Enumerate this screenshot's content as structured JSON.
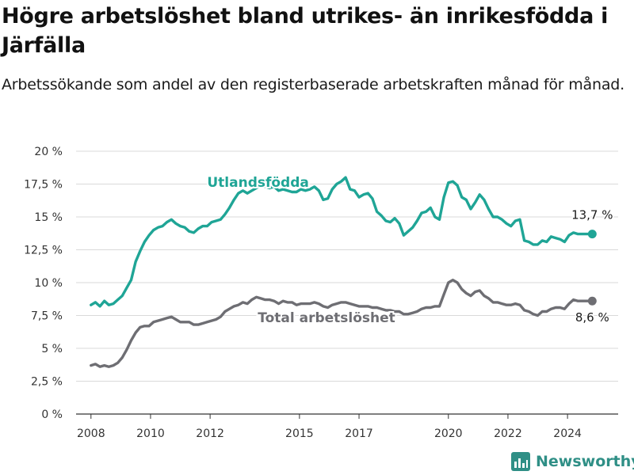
{
  "title": "Högre arbetslöshet bland utrikes- än inrikesfödda i Järfälla",
  "subtitle": "Arbetssökande som andel av den registerbaserade arbetskraften månad för månad.",
  "brand": {
    "name": "Newsworthy",
    "icon": "newsworthy-logo-icon",
    "color": "#2f8f86"
  },
  "chart_data": {
    "type": "line",
    "xlim": [
      2007.5,
      2025.7
    ],
    "ylim": [
      0,
      20
    ],
    "y_ticks": [
      {
        "value": 0,
        "label": "0 %"
      },
      {
        "value": 2.5,
        "label": "2,5 %"
      },
      {
        "value": 5,
        "label": "5 %"
      },
      {
        "value": 7.5,
        "label": "7,5 %"
      },
      {
        "value": 10,
        "label": "10 %"
      },
      {
        "value": 12.5,
        "label": "12,5 %"
      },
      {
        "value": 15,
        "label": "15 %"
      },
      {
        "value": 17.5,
        "label": "17,5 %"
      },
      {
        "value": 20,
        "label": "20 %"
      }
    ],
    "x_ticks": [
      {
        "value": 2008,
        "label": "2008"
      },
      {
        "value": 2010,
        "label": "2010"
      },
      {
        "value": 2012,
        "label": "2012"
      },
      {
        "value": 2015,
        "label": "2015"
      },
      {
        "value": 2017,
        "label": "2017"
      },
      {
        "value": 2020,
        "label": "2020"
      },
      {
        "value": 2022,
        "label": "2022"
      },
      {
        "value": 2024,
        "label": "2024"
      }
    ],
    "grid": "horizontal",
    "series": [
      {
        "name": "Utlandsfödda",
        "color": "#1fa596",
        "end_value_label": "13,7 %",
        "x": [
          2008.0,
          2008.15,
          2008.3,
          2008.45,
          2008.6,
          2008.75,
          2008.9,
          2009.05,
          2009.2,
          2009.35,
          2009.5,
          2009.65,
          2009.8,
          2009.95,
          2010.1,
          2010.25,
          2010.4,
          2010.55,
          2010.7,
          2010.85,
          2011.0,
          2011.15,
          2011.3,
          2011.45,
          2011.6,
          2011.75,
          2011.9,
          2012.05,
          2012.2,
          2012.35,
          2012.5,
          2012.65,
          2012.8,
          2012.95,
          2013.1,
          2013.25,
          2013.4,
          2013.55,
          2013.7,
          2013.85,
          2014.0,
          2014.15,
          2014.3,
          2014.45,
          2014.6,
          2014.75,
          2014.9,
          2015.05,
          2015.2,
          2015.35,
          2015.5,
          2015.65,
          2015.8,
          2015.95,
          2016.1,
          2016.25,
          2016.4,
          2016.55,
          2016.7,
          2016.85,
          2017.0,
          2017.15,
          2017.3,
          2017.45,
          2017.6,
          2017.75,
          2017.9,
          2018.05,
          2018.2,
          2018.35,
          2018.5,
          2018.65,
          2018.8,
          2018.95,
          2019.1,
          2019.25,
          2019.4,
          2019.55,
          2019.7,
          2019.85,
          2020.0,
          2020.15,
          2020.3,
          2020.45,
          2020.6,
          2020.75,
          2020.9,
          2021.05,
          2021.2,
          2021.35,
          2021.5,
          2021.65,
          2021.8,
          2021.95,
          2022.1,
          2022.25,
          2022.4,
          2022.55,
          2022.7,
          2022.85,
          2023.0,
          2023.15,
          2023.3,
          2023.45,
          2023.6,
          2023.75,
          2023.9,
          2024.05,
          2024.2,
          2024.35,
          2024.5,
          2024.65,
          2024.83
        ],
        "values": [
          8.3,
          8.5,
          8.2,
          8.6,
          8.3,
          8.4,
          8.7,
          9.0,
          9.6,
          10.2,
          11.6,
          12.4,
          13.1,
          13.6,
          14.0,
          14.2,
          14.3,
          14.6,
          14.8,
          14.5,
          14.3,
          14.2,
          13.9,
          13.8,
          14.1,
          14.3,
          14.3,
          14.6,
          14.7,
          14.8,
          15.2,
          15.7,
          16.3,
          16.8,
          17.0,
          16.8,
          17.0,
          17.2,
          17.4,
          17.3,
          17.2,
          17.3,
          17.0,
          17.1,
          17.0,
          16.9,
          16.9,
          17.1,
          17.0,
          17.1,
          17.3,
          17.0,
          16.3,
          16.4,
          17.1,
          17.5,
          17.7,
          18.0,
          17.1,
          17.0,
          16.5,
          16.7,
          16.8,
          16.4,
          15.4,
          15.1,
          14.7,
          14.6,
          14.9,
          14.5,
          13.6,
          13.9,
          14.2,
          14.7,
          15.3,
          15.4,
          15.7,
          15.0,
          14.8,
          16.5,
          17.6,
          17.7,
          17.4,
          16.5,
          16.3,
          15.6,
          16.1,
          16.7,
          16.3,
          15.6,
          15.0,
          15.0,
          14.8,
          14.5,
          14.3,
          14.7,
          14.8,
          13.2,
          13.1,
          12.9,
          12.9,
          13.2,
          13.1,
          13.5,
          13.4,
          13.3,
          13.1,
          13.6,
          13.8,
          13.7,
          13.7,
          13.7,
          13.7
        ]
      },
      {
        "name": "Total arbetslöshet",
        "color": "#6e6e73",
        "end_value_label": "8,6 %",
        "x": [
          2008.0,
          2008.15,
          2008.3,
          2008.45,
          2008.6,
          2008.75,
          2008.9,
          2009.05,
          2009.2,
          2009.35,
          2009.5,
          2009.65,
          2009.8,
          2009.95,
          2010.1,
          2010.25,
          2010.4,
          2010.55,
          2010.7,
          2010.85,
          2011.0,
          2011.15,
          2011.3,
          2011.45,
          2011.6,
          2011.75,
          2011.9,
          2012.05,
          2012.2,
          2012.35,
          2012.5,
          2012.65,
          2012.8,
          2012.95,
          2013.1,
          2013.25,
          2013.4,
          2013.55,
          2013.7,
          2013.85,
          2014.0,
          2014.15,
          2014.3,
          2014.45,
          2014.6,
          2014.75,
          2014.9,
          2015.05,
          2015.2,
          2015.35,
          2015.5,
          2015.65,
          2015.8,
          2015.95,
          2016.1,
          2016.25,
          2016.4,
          2016.55,
          2016.7,
          2016.85,
          2017.0,
          2017.15,
          2017.3,
          2017.45,
          2017.6,
          2017.75,
          2017.9,
          2018.05,
          2018.2,
          2018.35,
          2018.5,
          2018.65,
          2018.8,
          2018.95,
          2019.1,
          2019.25,
          2019.4,
          2019.55,
          2019.7,
          2019.85,
          2020.0,
          2020.15,
          2020.3,
          2020.45,
          2020.6,
          2020.75,
          2020.9,
          2021.05,
          2021.2,
          2021.35,
          2021.5,
          2021.65,
          2021.8,
          2021.95,
          2022.1,
          2022.25,
          2022.4,
          2022.55,
          2022.7,
          2022.85,
          2023.0,
          2023.15,
          2023.3,
          2023.45,
          2023.6,
          2023.75,
          2023.9,
          2024.05,
          2024.2,
          2024.35,
          2024.5,
          2024.65,
          2024.83
        ],
        "values": [
          3.7,
          3.8,
          3.6,
          3.7,
          3.6,
          3.7,
          3.9,
          4.3,
          4.9,
          5.6,
          6.2,
          6.6,
          6.7,
          6.7,
          7.0,
          7.1,
          7.2,
          7.3,
          7.4,
          7.2,
          7.0,
          7.0,
          7.0,
          6.8,
          6.8,
          6.9,
          7.0,
          7.1,
          7.2,
          7.4,
          7.8,
          8.0,
          8.2,
          8.3,
          8.5,
          8.4,
          8.7,
          8.9,
          8.8,
          8.7,
          8.7,
          8.6,
          8.4,
          8.6,
          8.5,
          8.5,
          8.3,
          8.4,
          8.4,
          8.4,
          8.5,
          8.4,
          8.2,
          8.1,
          8.3,
          8.4,
          8.5,
          8.5,
          8.4,
          8.3,
          8.2,
          8.2,
          8.2,
          8.1,
          8.1,
          8.0,
          7.9,
          7.9,
          7.8,
          7.8,
          7.6,
          7.6,
          7.7,
          7.8,
          8.0,
          8.1,
          8.1,
          8.2,
          8.2,
          9.1,
          10.0,
          10.2,
          10.0,
          9.5,
          9.2,
          9.0,
          9.3,
          9.4,
          9.0,
          8.8,
          8.5,
          8.5,
          8.4,
          8.3,
          8.3,
          8.4,
          8.3,
          7.9,
          7.8,
          7.6,
          7.5,
          7.8,
          7.8,
          8.0,
          8.1,
          8.1,
          8.0,
          8.4,
          8.7,
          8.6,
          8.6,
          8.6,
          8.6
        ]
      }
    ]
  }
}
